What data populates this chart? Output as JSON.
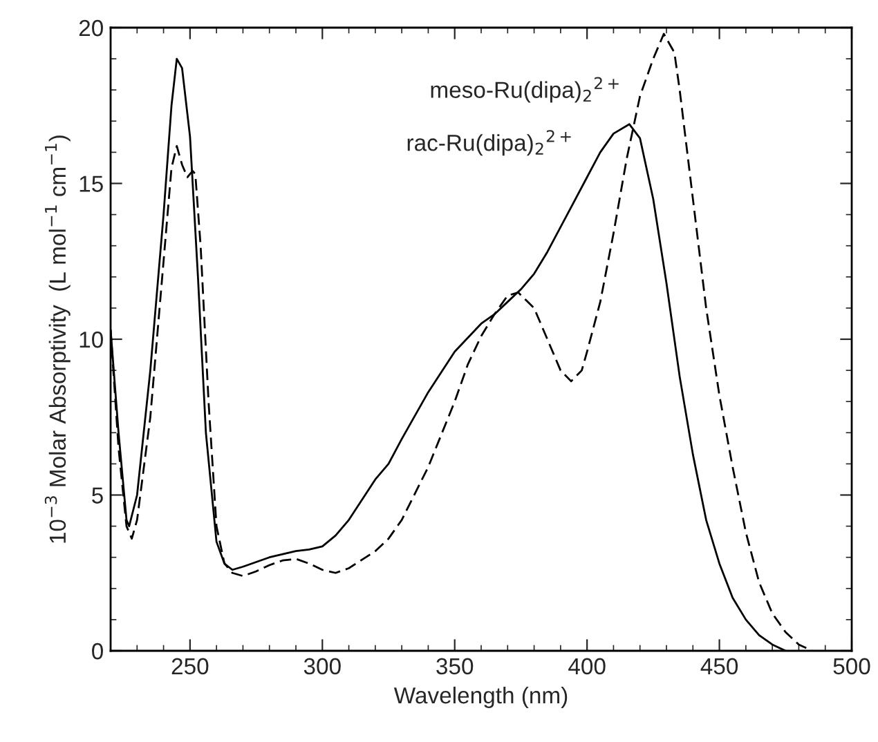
{
  "chart_data": {
    "type": "line",
    "xlabel": "Wavelength (nm)",
    "ylabel": "10$^{−3}$ Molar Absorptivity  (L mol$^{−1}$ cm$^{−1}$)",
    "xlim": [
      220,
      500
    ],
    "xticks": [
      250,
      300,
      350,
      400,
      450,
      500
    ],
    "ylim": [
      0,
      20
    ],
    "yticks": [
      0,
      5,
      10,
      15,
      20
    ],
    "grid": false,
    "legend": false,
    "marker": "none",
    "series": [
      {
        "name": "rac-Ru(dipa)$_{2}$$^{2+}$",
        "color": "#000000",
        "line_style": "solid",
        "x": [
          220,
          223,
          226,
          227,
          230,
          235,
          240,
          243,
          245,
          247,
          250,
          253,
          256,
          260,
          263,
          266,
          270,
          275,
          280,
          285,
          290,
          295,
          300,
          305,
          310,
          320,
          325,
          330,
          340,
          350,
          360,
          365,
          370,
          375,
          380,
          385,
          390,
          395,
          400,
          405,
          410,
          416,
          420,
          425,
          430,
          435,
          440,
          445,
          450,
          455,
          460,
          465,
          470,
          475
        ],
        "values": [
          10.3,
          7,
          4.2,
          4.0,
          5,
          9,
          14,
          17.5,
          19.0,
          18.7,
          16.5,
          12,
          7,
          3.5,
          2.8,
          2.6,
          2.7,
          2.85,
          3.0,
          3.1,
          3.2,
          3.25,
          3.35,
          3.7,
          4.2,
          5.5,
          6.0,
          6.8,
          8.3,
          9.6,
          10.5,
          10.8,
          11.2,
          11.6,
          12.1,
          12.8,
          13.6,
          14.4,
          15.2,
          16.0,
          16.6,
          16.9,
          16.45,
          14.5,
          11.8,
          8.8,
          6.3,
          4.2,
          2.8,
          1.7,
          1.0,
          0.5,
          0.2,
          0
        ]
      },
      {
        "name": "meso-Ru(dipa)$_{2}$$^{2+}$",
        "color": "#000000",
        "line_style": "dashed",
        "x": [
          220,
          223,
          226,
          228,
          230,
          235,
          240,
          243,
          245,
          247,
          249,
          251,
          252,
          254,
          257,
          260,
          263,
          266,
          270,
          275,
          280,
          285,
          290,
          295,
          300,
          305,
          310,
          320,
          325,
          330,
          340,
          350,
          355,
          360,
          365,
          370,
          374,
          380,
          385,
          390,
          394,
          398,
          400,
          405,
          410,
          415,
          420,
          425,
          429,
          433,
          435,
          440,
          445,
          450,
          455,
          460,
          465,
          470,
          475,
          480,
          485
        ],
        "values": [
          10.3,
          6.5,
          4,
          3.6,
          4.2,
          7.5,
          12.5,
          15.5,
          16.2,
          15.6,
          15.2,
          15.4,
          15.3,
          13,
          8,
          4,
          2.8,
          2.5,
          2.4,
          2.55,
          2.75,
          2.9,
          2.95,
          2.8,
          2.6,
          2.5,
          2.65,
          3.2,
          3.6,
          4.2,
          5.9,
          8.0,
          9.2,
          10.1,
          10.8,
          11.4,
          11.5,
          11.0,
          10.0,
          9.0,
          8.65,
          9.0,
          9.6,
          11.2,
          13.4,
          15.8,
          17.8,
          19.0,
          19.8,
          19.2,
          18.0,
          14.5,
          11,
          8.2,
          5.9,
          3.8,
          2.2,
          1.2,
          0.6,
          0.2,
          0
        ]
      }
    ]
  }
}
